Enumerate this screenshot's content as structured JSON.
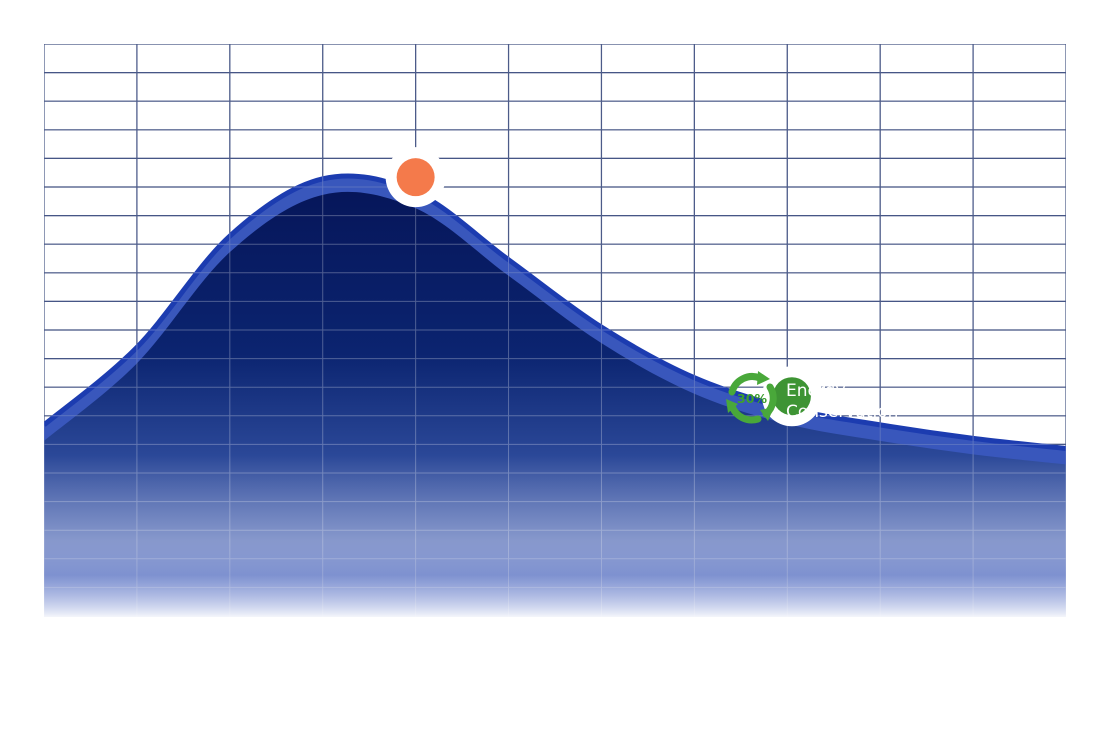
{
  "chart_data": {
    "type": "area",
    "title": "",
    "xlabel": "",
    "ylabel": "",
    "grid": true,
    "x": [
      0,
      1,
      2,
      3,
      4,
      5,
      6,
      7,
      8,
      9,
      10,
      11
    ],
    "series": [
      {
        "values": [
          3.7,
          6.0,
          9.3,
          11.0,
          10.6,
          8.6,
          6.6,
          5.1,
          4.2,
          3.7,
          3.3,
          3.0
        ]
      }
    ],
    "xlim": [
      0,
      11
    ],
    "ylim": [
      -2,
      15
    ],
    "highlights": [
      {
        "x": 4.0,
        "y": 11.05,
        "color": "#f47a4b"
      },
      {
        "x": 8.05,
        "y": 4.55,
        "color": "#3e9434"
      }
    ],
    "annotations": [
      {
        "badge": "30%",
        "line1": "Energy",
        "line2": "Conservation"
      }
    ],
    "colors": {
      "grid": "#0b1f5e",
      "area_top": "#061b5e",
      "area_bottom": "#ffffff",
      "edge_band": "#1f3fb8",
      "peak_marker": "#f47a4b",
      "energy_marker": "#3e9434",
      "recycle_icon": "#49a83a"
    }
  }
}
